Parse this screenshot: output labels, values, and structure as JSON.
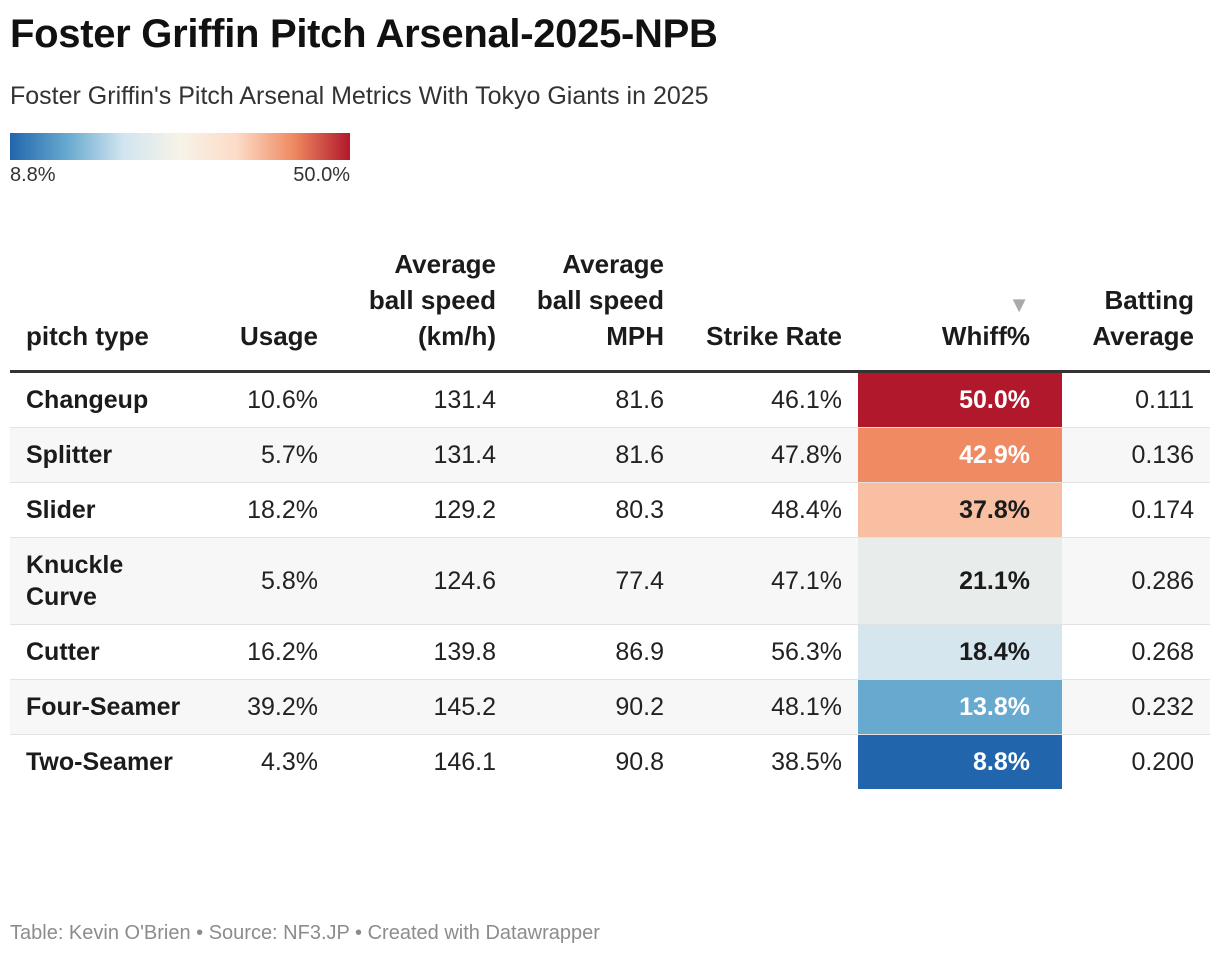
{
  "title": "Foster Griffin Pitch Arsenal-2025-NPB",
  "subtitle": "Foster Griffin's Pitch Arsenal Metrics With Tokyo Giants in 2025",
  "legend": {
    "min_label": "8.8%",
    "max_label": "50.0%",
    "colors": [
      "#2166ac",
      "#67a9cf",
      "#d1e5f0",
      "#f7f3e8",
      "#fddbc7",
      "#ef8a62",
      "#b2182b"
    ]
  },
  "chart_data": {
    "type": "table",
    "title": "Foster Griffin Pitch Arsenal-2025-NPB",
    "headers": {
      "pitch": "pitch type",
      "usage": "Usage",
      "kmh": "Average ball speed (km/h)",
      "mph": "Average ball speed MPH",
      "strike": "Strike Rate",
      "whiff": "Whiff%",
      "avg": "Batting Average"
    },
    "sort_indicator": "▼",
    "sorted_by": "Whiff%",
    "whiff_scale": [
      8.8,
      50.0
    ],
    "rows": [
      {
        "pitch": "Changeup",
        "usage": "10.6%",
        "kmh": "131.4",
        "mph": "81.6",
        "strike": "46.1%",
        "whiff": "50.0%",
        "whiff_value": 50.0,
        "whiff_bg": "#b2182b",
        "whiff_fg": "#ffffff",
        "avg": "0.111"
      },
      {
        "pitch": "Splitter",
        "usage": "5.7%",
        "kmh": "131.4",
        "mph": "81.6",
        "strike": "47.8%",
        "whiff": "42.9%",
        "whiff_value": 42.9,
        "whiff_bg": "#ef8a62",
        "whiff_fg": "#ffffff",
        "avg": "0.136"
      },
      {
        "pitch": "Slider",
        "usage": "18.2%",
        "kmh": "129.2",
        "mph": "80.3",
        "strike": "48.4%",
        "whiff": "37.8%",
        "whiff_value": 37.8,
        "whiff_bg": "#f8bfa3",
        "whiff_fg": "#1b1b1b",
        "avg": "0.174"
      },
      {
        "pitch": "Knuckle Curve",
        "usage": "5.8%",
        "kmh": "124.6",
        "mph": "77.4",
        "strike": "47.1%",
        "whiff": "21.1%",
        "whiff_value": 21.1,
        "whiff_bg": "#e8ecea",
        "whiff_fg": "#1b1b1b",
        "avg": "0.286"
      },
      {
        "pitch": "Cutter",
        "usage": "16.2%",
        "kmh": "139.8",
        "mph": "86.9",
        "strike": "56.3%",
        "whiff": "18.4%",
        "whiff_value": 18.4,
        "whiff_bg": "#d5e6ef",
        "whiff_fg": "#1b1b1b",
        "avg": "0.268"
      },
      {
        "pitch": "Four-Seamer",
        "usage": "39.2%",
        "kmh": "145.2",
        "mph": "90.2",
        "strike": "48.1%",
        "whiff": "13.8%",
        "whiff_value": 13.8,
        "whiff_bg": "#67a9cf",
        "whiff_fg": "#ffffff",
        "avg": "0.232"
      },
      {
        "pitch": "Two-Seamer",
        "usage": "4.3%",
        "kmh": "146.1",
        "mph": "90.8",
        "strike": "38.5%",
        "whiff": "8.8%",
        "whiff_value": 8.8,
        "whiff_bg": "#2166ac",
        "whiff_fg": "#ffffff",
        "avg": "0.200"
      }
    ]
  },
  "footer": "Table: Kevin O'Brien • Source: NF3.JP • Created with Datawrapper"
}
